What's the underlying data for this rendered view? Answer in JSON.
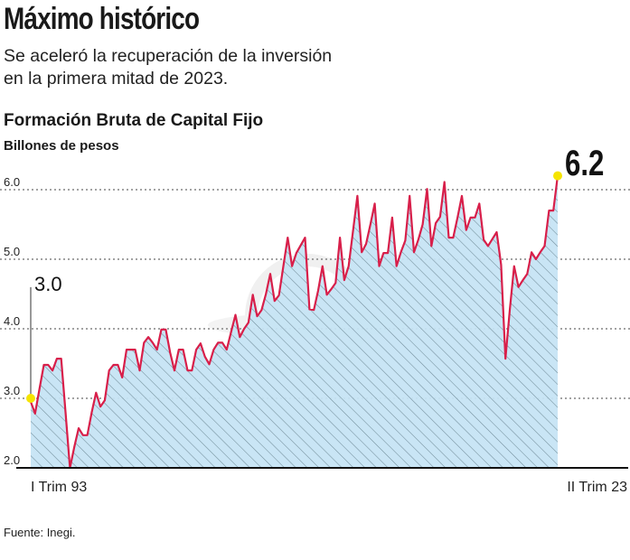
{
  "header": {
    "title": "Máximo histórico",
    "subtitle_lines": [
      "Se aceleró la recuperación de la inversión",
      "en la primera mitad de 2023."
    ]
  },
  "footer": {
    "source": "Fuente: Inegi."
  },
  "colors": {
    "line": "#d81f4a",
    "fill": "#c6e4f4",
    "hatch": "#6b8796",
    "highlight": "#f5e400"
  },
  "chart_data": {
    "type": "area",
    "title": "Formación Bruta de Capital Fijo",
    "ylabel": "Billones de pesos",
    "frequency": "quarterly",
    "x_start_label": "I Trim 93",
    "x_end_label": "II Trim 23",
    "ylim": [
      2.0,
      6.2
    ],
    "yticks": [
      "2.0",
      "3.0",
      "4.0",
      "5.0",
      "6.0"
    ],
    "grid": true,
    "annotations": {
      "start": "3.0",
      "end": "6.2"
    },
    "values": [
      2.95,
      2.78,
      3.13,
      3.48,
      3.48,
      3.4,
      3.57,
      3.57,
      2.8,
      2.0,
      2.3,
      2.57,
      2.47,
      2.47,
      2.8,
      3.08,
      2.88,
      2.97,
      3.4,
      3.48,
      3.48,
      3.3,
      3.7,
      3.7,
      3.7,
      3.4,
      3.8,
      3.88,
      3.8,
      3.7,
      3.99,
      3.99,
      3.66,
      3.4,
      3.7,
      3.7,
      3.4,
      3.4,
      3.7,
      3.79,
      3.6,
      3.49,
      3.7,
      3.8,
      3.8,
      3.7,
      3.95,
      4.2,
      3.88,
      4.0,
      4.09,
      4.49,
      4.18,
      4.27,
      4.5,
      4.79,
      4.4,
      4.48,
      4.9,
      5.31,
      4.9,
      5.09,
      5.2,
      5.31,
      4.28,
      4.27,
      4.55,
      4.9,
      4.49,
      4.57,
      4.66,
      5.31,
      4.7,
      4.9,
      5.4,
      5.91,
      5.1,
      5.22,
      5.5,
      5.8,
      4.9,
      5.09,
      5.09,
      5.6,
      4.9,
      5.1,
      5.27,
      5.91,
      5.1,
      5.28,
      5.5,
      6.01,
      5.19,
      5.52,
      5.61,
      6.11,
      5.31,
      5.31,
      5.6,
      5.91,
      5.42,
      5.6,
      5.6,
      5.8,
      5.28,
      5.19,
      5.29,
      5.39,
      4.92,
      3.57,
      4.27,
      4.9,
      4.6,
      4.7,
      4.79,
      5.1,
      5.0,
      5.1,
      5.19,
      5.7,
      5.7,
      6.2
    ]
  }
}
